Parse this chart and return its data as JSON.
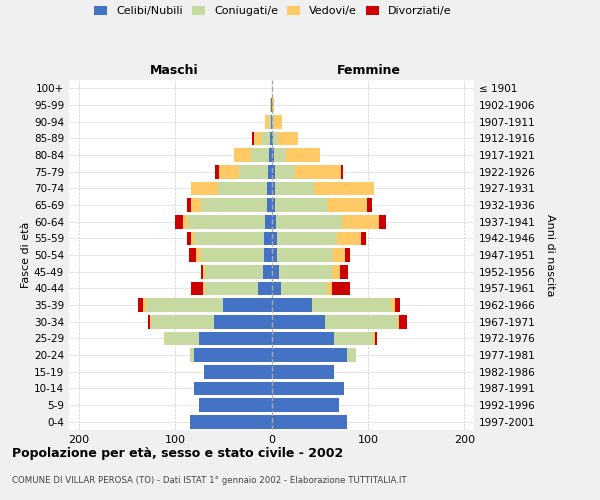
{
  "age_groups": [
    "0-4",
    "5-9",
    "10-14",
    "15-19",
    "20-24",
    "25-29",
    "30-34",
    "35-39",
    "40-44",
    "45-49",
    "50-54",
    "55-59",
    "60-64",
    "65-69",
    "70-74",
    "75-79",
    "80-84",
    "85-89",
    "90-94",
    "95-99",
    "100+"
  ],
  "birth_years": [
    "1997-2001",
    "1992-1996",
    "1987-1991",
    "1982-1986",
    "1977-1981",
    "1972-1976",
    "1967-1971",
    "1962-1966",
    "1957-1961",
    "1952-1956",
    "1947-1951",
    "1942-1946",
    "1937-1941",
    "1932-1936",
    "1927-1931",
    "1922-1926",
    "1917-1921",
    "1912-1916",
    "1907-1911",
    "1902-1906",
    "≤ 1901"
  ],
  "maschi_celibi": [
    85,
    75,
    80,
    70,
    80,
    75,
    60,
    50,
    14,
    9,
    8,
    8,
    7,
    5,
    5,
    4,
    3,
    2,
    1,
    1,
    0
  ],
  "maschi_coniugati": [
    0,
    0,
    0,
    0,
    5,
    35,
    65,
    80,
    55,
    60,
    65,
    72,
    80,
    68,
    50,
    30,
    18,
    8,
    2,
    0,
    0
  ],
  "maschi_vedovi": [
    0,
    0,
    0,
    0,
    0,
    2,
    1,
    3,
    2,
    2,
    5,
    3,
    5,
    10,
    28,
    20,
    18,
    8,
    4,
    1,
    0
  ],
  "maschi_divorziati": [
    0,
    0,
    0,
    0,
    0,
    0,
    2,
    5,
    12,
    2,
    8,
    5,
    8,
    5,
    0,
    5,
    0,
    2,
    0,
    0,
    0
  ],
  "femmine_nubili": [
    78,
    70,
    75,
    65,
    78,
    65,
    55,
    42,
    10,
    8,
    6,
    6,
    5,
    4,
    4,
    4,
    3,
    2,
    1,
    1,
    0
  ],
  "femmine_coniugate": [
    0,
    0,
    0,
    0,
    10,
    40,
    75,
    82,
    48,
    55,
    58,
    62,
    68,
    55,
    40,
    20,
    12,
    5,
    2,
    0,
    0
  ],
  "femmine_vedove": [
    0,
    0,
    0,
    0,
    0,
    2,
    2,
    4,
    5,
    8,
    12,
    25,
    38,
    40,
    62,
    48,
    35,
    20,
    8,
    2,
    0
  ],
  "femmine_divorziate": [
    0,
    0,
    0,
    0,
    0,
    2,
    8,
    5,
    18,
    8,
    5,
    5,
    8,
    5,
    0,
    2,
    0,
    0,
    0,
    0,
    0
  ],
  "colors": {
    "celibi_nubili": "#4472c4",
    "coniugati": "#c5d9a0",
    "vedovi": "#ffc966",
    "divorziati": "#cc0000"
  },
  "xlim": 210,
  "title": "Popolazione per età, sesso e stato civile - 2002",
  "subtitle": "COMUNE DI VILLAR PEROSA (TO) - Dati ISTAT 1° gennaio 2002 - Elaborazione TUTTITALIA.IT",
  "xlabel_left": "Maschi",
  "xlabel_right": "Femmine",
  "ylabel": "Fasce di età",
  "ylabel_right": "Anni di nascita",
  "bg_color": "#f0f0f0",
  "plot_bg": "#ffffff",
  "legend_labels": [
    "Celibi/Nubili",
    "Coniugati/e",
    "Vedovi/e",
    "Divorziati/e"
  ]
}
